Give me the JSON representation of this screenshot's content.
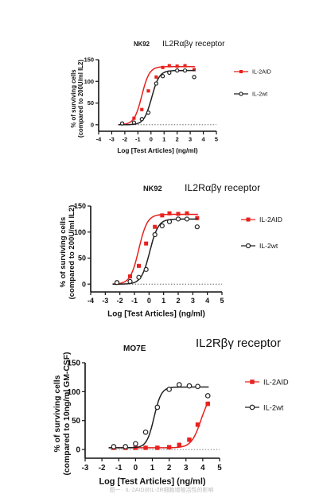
{
  "chart_data": [
    {
      "type": "line",
      "cell_line": "NK92",
      "receptor": "IL2Rαβγ receptor",
      "ylabel_line1": "% of surviving cells",
      "ylabel_line2": "(compared to 200U/ml IL2)",
      "xlabel": "Log [Test Articles] (ng/ml)",
      "xlim": [
        -4,
        5
      ],
      "ylim": [
        -15,
        150
      ],
      "xticks": [
        -4,
        -3,
        -2,
        -1,
        0,
        1,
        2,
        3,
        4,
        5
      ],
      "yticks": [
        0,
        50,
        100,
        150
      ],
      "baseline": 0,
      "legend_position": "right",
      "series": [
        {
          "name": "IL-2AID",
          "color": "#e8211e",
          "marker": "filled-square",
          "points": [
            [
              -2.2,
              3
            ],
            [
              -1.3,
              15
            ],
            [
              -0.7,
              35
            ],
            [
              -0.2,
              78
            ],
            [
              0.4,
              110
            ],
            [
              0.9,
              132
            ],
            [
              1.4,
              136
            ],
            [
              2.0,
              135
            ],
            [
              2.6,
              136
            ],
            [
              3.3,
              127
            ]
          ],
          "fit": {
            "bottom": 0,
            "top": 134,
            "ec50": -0.7,
            "hill": 1.5
          }
        },
        {
          "name": "IL-2wt",
          "color": "#222222",
          "marker": "open-circle",
          "points": [
            [
              -2.2,
              3
            ],
            [
              -1.3,
              5
            ],
            [
              -0.7,
              13
            ],
            [
              -0.2,
              28
            ],
            [
              0.4,
              95
            ],
            [
              0.9,
              112
            ],
            [
              1.4,
              120
            ],
            [
              2.0,
              125
            ],
            [
              2.6,
              125
            ],
            [
              3.3,
              110
            ]
          ],
          "fit": {
            "bottom": 0,
            "top": 125,
            "ec50": 0.05,
            "hill": 1.5
          }
        }
      ]
    },
    {
      "type": "line",
      "cell_line": "NK92",
      "receptor": "IL2Rαβγ receptor",
      "ylabel_line1": "% of surviving cells",
      "ylabel_line2": "(compared to 200U/ml IL2)",
      "xlabel": "Log [Test Articles] (ng/ml)",
      "xlim": [
        -4,
        5
      ],
      "ylim": [
        -15,
        150
      ],
      "xticks": [
        -4,
        -3,
        -2,
        -1,
        0,
        1,
        2,
        3,
        4,
        5
      ],
      "yticks": [
        0,
        50,
        100,
        150
      ],
      "baseline": 0,
      "legend_position": "right",
      "series": [
        {
          "name": "IL-2AID",
          "color": "#e8211e",
          "marker": "filled-square",
          "points": [
            [
              -2.2,
              3
            ],
            [
              -1.3,
              15
            ],
            [
              -0.7,
              35
            ],
            [
              -0.2,
              78
            ],
            [
              0.4,
              110
            ],
            [
              0.9,
              132
            ],
            [
              1.4,
              136
            ],
            [
              2.0,
              135
            ],
            [
              2.6,
              136
            ],
            [
              3.3,
              127
            ]
          ],
          "fit": {
            "bottom": 0,
            "top": 134,
            "ec50": -0.7,
            "hill": 1.5
          }
        },
        {
          "name": "IL-2wt",
          "color": "#222222",
          "marker": "open-circle",
          "points": [
            [
              -2.2,
              3
            ],
            [
              -1.3,
              5
            ],
            [
              -0.7,
              13
            ],
            [
              -0.2,
              28
            ],
            [
              0.4,
              95
            ],
            [
              0.9,
              112
            ],
            [
              1.4,
              120
            ],
            [
              2.0,
              125
            ],
            [
              2.6,
              125
            ],
            [
              3.3,
              110
            ]
          ],
          "fit": {
            "bottom": 0,
            "top": 125,
            "ec50": 0.05,
            "hill": 1.5
          }
        }
      ]
    },
    {
      "type": "line",
      "cell_line": "MO7E",
      "receptor": "IL2Rβγ receptor",
      "ylabel_line1": "% of surviving cells",
      "ylabel_line2": "(compared to 10ng/ml GM-CSF)",
      "xlabel": "Log [Test Articles] (ng/ml)",
      "xlim": [
        -3,
        5
      ],
      "ylim": [
        -15,
        150
      ],
      "xticks": [
        -3,
        -2,
        -1,
        0,
        1,
        2,
        3,
        4,
        5
      ],
      "yticks": [
        0,
        50,
        100,
        150
      ],
      "baseline": 0,
      "legend_position": "right",
      "series": [
        {
          "name": "IL-2AID",
          "color": "#e8211e",
          "marker": "filled-square",
          "points": [
            [
              -1.3,
              3
            ],
            [
              -0.6,
              3
            ],
            [
              0.0,
              3
            ],
            [
              0.6,
              3
            ],
            [
              1.3,
              3
            ],
            [
              2.0,
              4
            ],
            [
              2.6,
              8
            ],
            [
              3.2,
              17
            ],
            [
              3.7,
              43
            ],
            [
              4.3,
              79
            ]
          ],
          "fit": {
            "bottom": 3,
            "top": 100,
            "ec50": 3.9,
            "hill": 1.5
          }
        },
        {
          "name": "IL-2wt",
          "color": "#222222",
          "marker": "open-circle",
          "points": [
            [
              -1.3,
              5
            ],
            [
              -0.6,
              5
            ],
            [
              0.0,
              10
            ],
            [
              0.6,
              30
            ],
            [
              1.3,
              73
            ],
            [
              2.0,
              104
            ],
            [
              2.6,
              112
            ],
            [
              3.2,
              110
            ],
            [
              3.7,
              109
            ],
            [
              4.3,
              93
            ]
          ],
          "fit": {
            "bottom": 3,
            "top": 108,
            "ec50": 1.1,
            "hill": 2.0
          }
        }
      ]
    }
  ],
  "caption": "图一 · IL-2AID对IL-2R细胞增殖活性的影响"
}
